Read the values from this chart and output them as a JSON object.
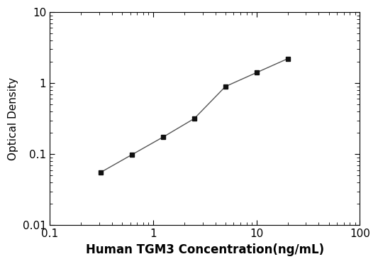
{
  "x_values": [
    0.313,
    0.625,
    1.25,
    2.5,
    5.0,
    10.0,
    20.0
  ],
  "y_values": [
    0.056,
    0.099,
    0.175,
    0.318,
    0.898,
    1.41,
    2.21
  ],
  "xlabel": "Human TGM3 Concentration(ng/mL)",
  "ylabel": "Optical Density",
  "xlim": [
    0.1,
    100
  ],
  "ylim": [
    0.01,
    10
  ],
  "line_color": "#555555",
  "marker": "s",
  "marker_color": "#111111",
  "marker_size": 5,
  "line_width": 1.0,
  "background_color": "#ffffff",
  "xlabel_fontsize": 12,
  "ylabel_fontsize": 11,
  "tick_fontsize": 11
}
